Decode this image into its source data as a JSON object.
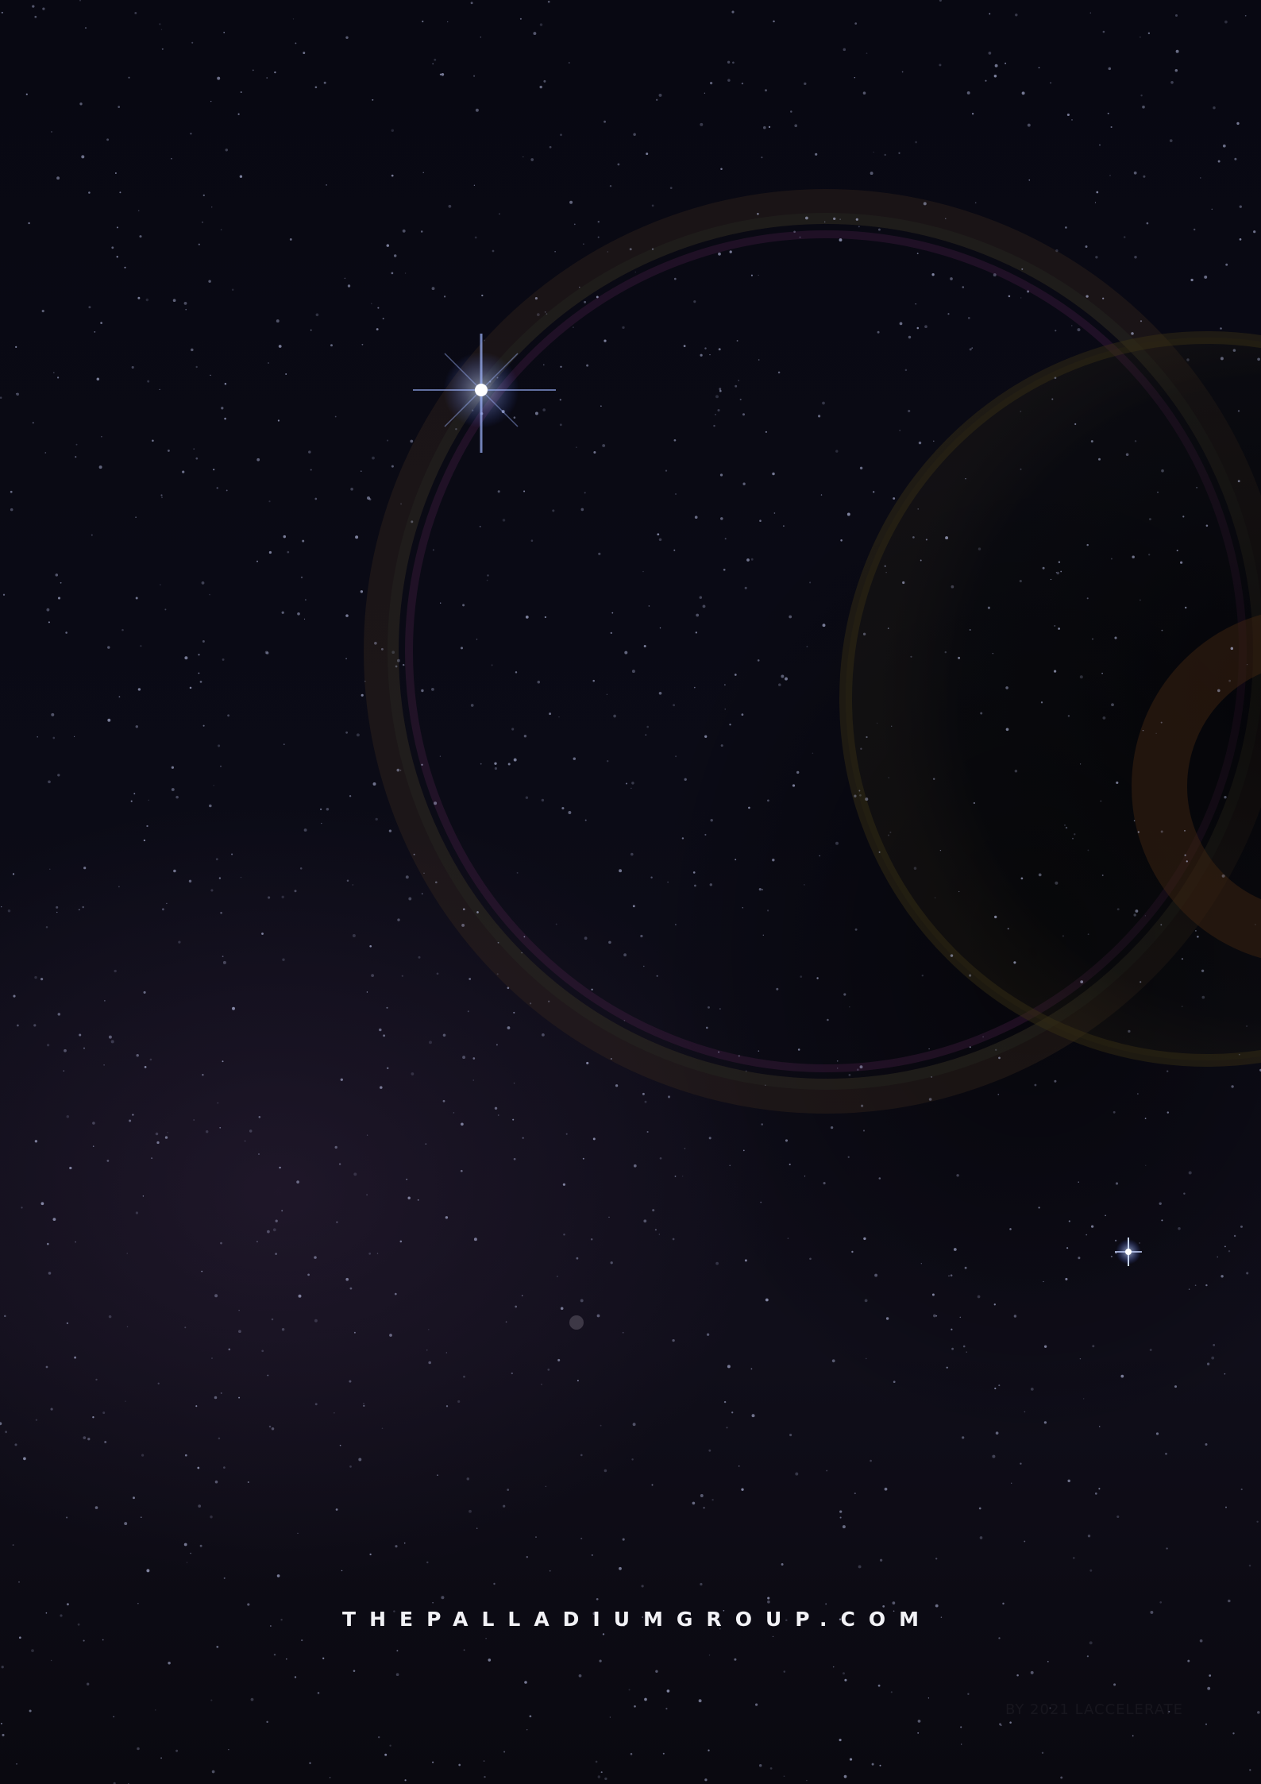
{
  "page": {
    "background": "#07070d",
    "star_color": "#cfd6ff"
  },
  "footer": {
    "website": "THEPALLADIUMGROUP.COM",
    "faint_credit": "BY 2021 LACCELERATE"
  }
}
